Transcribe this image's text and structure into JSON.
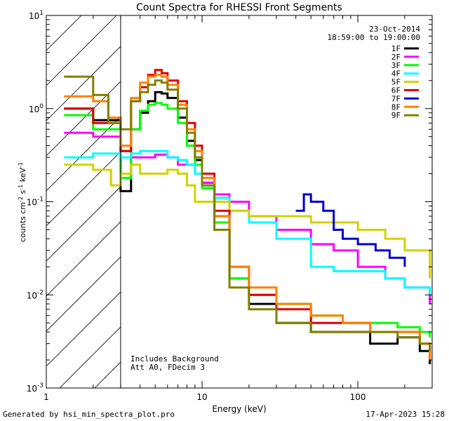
{
  "chart_data": {
    "type": "line",
    "title": "Count Spectra for RHESSI Front Segments",
    "xlabel": "Energy (keV)",
    "ylabel": "counts cm^-2 s^-1 keV^-1",
    "xscale": "log",
    "yscale": "log",
    "xlim": [
      1,
      300
    ],
    "ylim": [
      0.001,
      10
    ],
    "x_ticks": [
      {
        "value": 1,
        "label": "1"
      },
      {
        "value": 10,
        "label": "10"
      },
      {
        "value": 100,
        "label": "100"
      }
    ],
    "y_ticks": [
      {
        "value": 0.001,
        "label": "10^-3"
      },
      {
        "value": 0.01,
        "label": "10^-2"
      },
      {
        "value": 0.1,
        "label": "10^-1"
      },
      {
        "value": 1,
        "label": "10^0"
      },
      {
        "value": 10,
        "label": "10^1"
      }
    ],
    "shaded_region": {
      "from": 1,
      "to": 3,
      "pattern": "diagonal-hatch"
    },
    "date": "23-Oct-2014",
    "time_range": "18:59:00 to 19:00:00",
    "annotations": [
      "Includes Background",
      "Att A0, FDecim 3"
    ],
    "legend_position": "top-right",
    "series": [
      {
        "name": "1F",
        "color": "#000000",
        "points": [
          [
            1.3,
            1.0
          ],
          [
            2,
            0.75
          ],
          [
            3,
            0.13
          ],
          [
            3.5,
            0.6
          ],
          [
            4,
            0.9
          ],
          [
            4.5,
            1.2
          ],
          [
            5,
            1.5
          ],
          [
            5.5,
            1.45
          ],
          [
            6,
            1.3
          ],
          [
            7,
            0.8
          ],
          [
            8,
            0.45
          ],
          [
            9,
            0.28
          ],
          [
            10,
            0.16
          ],
          [
            12,
            0.07
          ],
          [
            15,
            0.015
          ],
          [
            20,
            0.008
          ],
          [
            30,
            0.005
          ],
          [
            50,
            0.004
          ],
          [
            80,
            0.004
          ],
          [
            120,
            0.003
          ],
          [
            180,
            0.0035
          ],
          [
            250,
            0.0025
          ],
          [
            290,
            0.0018
          ]
        ]
      },
      {
        "name": "2F",
        "color": "#ff00ff",
        "points": [
          [
            1.3,
            0.55
          ],
          [
            2,
            0.5
          ],
          [
            3,
            0.35
          ],
          [
            3.5,
            0.3
          ],
          [
            4,
            0.3
          ],
          [
            5,
            0.32
          ],
          [
            6,
            0.3
          ],
          [
            7,
            0.25
          ],
          [
            8,
            0.25
          ],
          [
            9,
            0.2
          ],
          [
            10,
            0.16
          ],
          [
            12,
            0.12
          ],
          [
            15,
            0.1
          ],
          [
            20,
            0.07
          ],
          [
            30,
            0.05
          ],
          [
            50,
            0.035
          ],
          [
            70,
            0.03
          ],
          [
            100,
            0.02
          ],
          [
            150,
            0.015
          ],
          [
            200,
            0.012
          ],
          [
            290,
            0.008
          ]
        ]
      },
      {
        "name": "3F",
        "color": "#00ff00",
        "points": [
          [
            1.3,
            0.85
          ],
          [
            2,
            0.6
          ],
          [
            3,
            0.18
          ],
          [
            3.5,
            0.6
          ],
          [
            4,
            0.95
          ],
          [
            4.5,
            1.1
          ],
          [
            5,
            1.15
          ],
          [
            5.5,
            1.1
          ],
          [
            6,
            1.0
          ],
          [
            7,
            0.7
          ],
          [
            8,
            0.4
          ],
          [
            9,
            0.25
          ],
          [
            10,
            0.14
          ],
          [
            12,
            0.06
          ],
          [
            15,
            0.015
          ],
          [
            20,
            0.01
          ],
          [
            30,
            0.008
          ],
          [
            50,
            0.006
          ],
          [
            80,
            0.005
          ],
          [
            120,
            0.005
          ],
          [
            180,
            0.0045
          ],
          [
            250,
            0.004
          ],
          [
            290,
            0.0035
          ]
        ]
      },
      {
        "name": "4F",
        "color": "#00ffff",
        "points": [
          [
            1.3,
            0.3
          ],
          [
            2,
            0.33
          ],
          [
            3,
            0.3
          ],
          [
            3.5,
            0.33
          ],
          [
            4,
            0.35
          ],
          [
            5,
            0.35
          ],
          [
            6,
            0.3
          ],
          [
            7,
            0.28
          ],
          [
            8,
            0.25
          ],
          [
            9,
            0.2
          ],
          [
            10,
            0.15
          ],
          [
            12,
            0.11
          ],
          [
            15,
            0.08
          ],
          [
            20,
            0.06
          ],
          [
            30,
            0.04
          ],
          [
            50,
            0.02
          ],
          [
            70,
            0.018
          ],
          [
            100,
            0.018
          ],
          [
            150,
            0.015
          ],
          [
            200,
            0.012
          ],
          [
            290,
            0.01
          ]
        ]
      },
      {
        "name": "5F",
        "color": "#d2d200",
        "points": [
          [
            1.3,
            0.25
          ],
          [
            2,
            0.22
          ],
          [
            2.6,
            0.15
          ],
          [
            3,
            0.2
          ],
          [
            3.5,
            0.25
          ],
          [
            4,
            0.2
          ],
          [
            5,
            0.2
          ],
          [
            6,
            0.22
          ],
          [
            7,
            0.2
          ],
          [
            8,
            0.15
          ],
          [
            9,
            0.1
          ],
          [
            10,
            0.1
          ],
          [
            12,
            0.1
          ],
          [
            15,
            0.08
          ],
          [
            20,
            0.07
          ],
          [
            30,
            0.07
          ],
          [
            50,
            0.06
          ],
          [
            70,
            0.06
          ],
          [
            100,
            0.05
          ],
          [
            150,
            0.04
          ],
          [
            200,
            0.03
          ],
          [
            290,
            0.015
          ]
        ]
      },
      {
        "name": "6F",
        "color": "#e00000",
        "points": [
          [
            1.3,
            1.0
          ],
          [
            2,
            0.7
          ],
          [
            3,
            0.35
          ],
          [
            3.5,
            1.2
          ],
          [
            4,
            1.7
          ],
          [
            4.5,
            2.3
          ],
          [
            5,
            2.6
          ],
          [
            5.5,
            2.4
          ],
          [
            6,
            2.0
          ],
          [
            7,
            1.2
          ],
          [
            8,
            0.7
          ],
          [
            9,
            0.4
          ],
          [
            10,
            0.2
          ],
          [
            12,
            0.08
          ],
          [
            15,
            0.02
          ],
          [
            20,
            0.01
          ],
          [
            30,
            0.007
          ],
          [
            50,
            0.005
          ],
          [
            80,
            0.005
          ],
          [
            120,
            0.004
          ],
          [
            180,
            0.004
          ],
          [
            250,
            0.003
          ],
          [
            290,
            0.002
          ]
        ]
      },
      {
        "name": "7F",
        "color": "#0000d0",
        "points": [
          [
            40,
            0.08
          ],
          [
            45,
            0.12
          ],
          [
            50,
            0.1
          ],
          [
            60,
            0.08
          ],
          [
            70,
            0.05
          ],
          [
            80,
            0.04
          ],
          [
            100,
            0.035
          ],
          [
            130,
            0.03
          ],
          [
            160,
            0.025
          ],
          [
            200,
            0.02
          ]
        ]
      },
      {
        "name": "8F",
        "color": "#ff8000",
        "points": [
          [
            1.3,
            1.35
          ],
          [
            2,
            1.2
          ],
          [
            2.5,
            0.8
          ],
          [
            3,
            0.4
          ],
          [
            3.5,
            1.3
          ],
          [
            4,
            1.9
          ],
          [
            4.5,
            2.2
          ],
          [
            5,
            2.3
          ],
          [
            5.5,
            2.2
          ],
          [
            6,
            1.8
          ],
          [
            7,
            1.1
          ],
          [
            8,
            0.6
          ],
          [
            9,
            0.35
          ],
          [
            10,
            0.18
          ],
          [
            12,
            0.07
          ],
          [
            15,
            0.02
          ],
          [
            20,
            0.012
          ],
          [
            30,
            0.008
          ],
          [
            50,
            0.006
          ],
          [
            80,
            0.005
          ],
          [
            120,
            0.004
          ],
          [
            180,
            0.004
          ],
          [
            250,
            0.003
          ],
          [
            290,
            0.002
          ]
        ]
      },
      {
        "name": "9F",
        "color": "#808000",
        "points": [
          [
            1.3,
            2.2
          ],
          [
            2,
            1.4
          ],
          [
            2.5,
            0.7
          ],
          [
            3,
            0.6
          ],
          [
            3.5,
            1.2
          ],
          [
            4,
            1.5
          ],
          [
            4.5,
            1.8
          ],
          [
            5,
            2.0
          ],
          [
            5.5,
            1.9
          ],
          [
            6,
            1.6
          ],
          [
            7,
            1.0
          ],
          [
            8,
            0.55
          ],
          [
            9,
            0.3
          ],
          [
            10,
            0.15
          ],
          [
            12,
            0.05
          ],
          [
            15,
            0.012
          ],
          [
            20,
            0.007
          ],
          [
            30,
            0.005
          ],
          [
            50,
            0.004
          ],
          [
            80,
            0.004
          ],
          [
            120,
            0.004
          ],
          [
            180,
            0.0035
          ],
          [
            250,
            0.003
          ],
          [
            290,
            0.0025
          ]
        ]
      }
    ]
  },
  "footer": {
    "generated_by": "Generated by hsi_min_spectra_plot.pro",
    "timestamp": "17-Apr-2023 15:28"
  }
}
